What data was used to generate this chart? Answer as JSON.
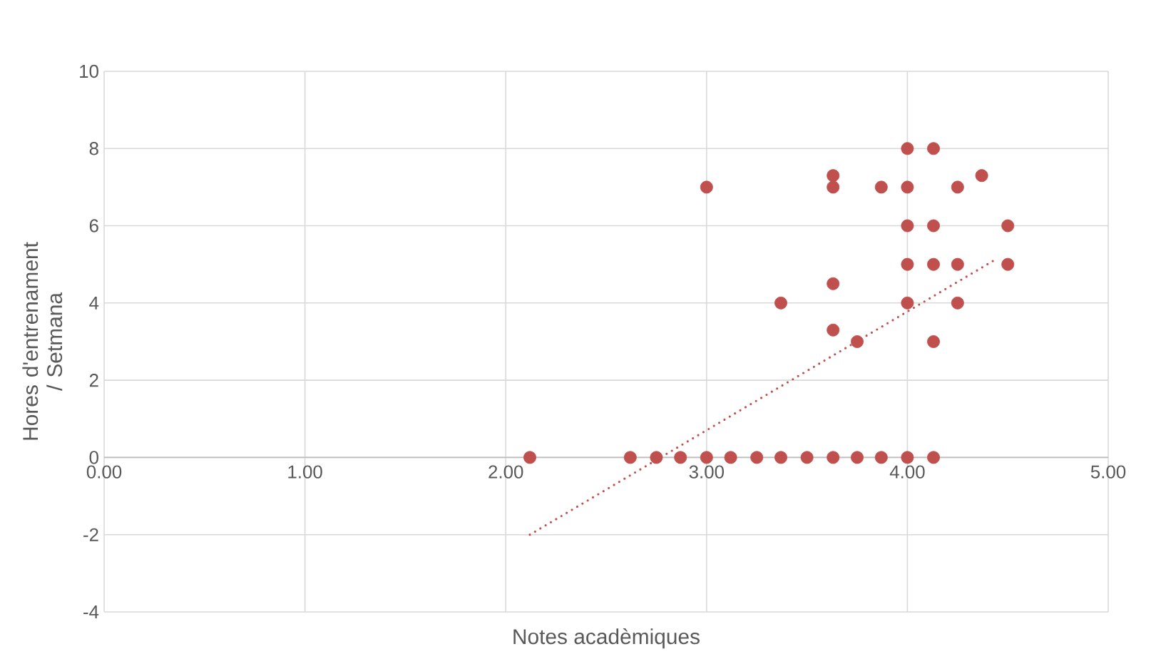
{
  "chart_data": {
    "type": "scatter",
    "xlabel": "Notes acadèmiques",
    "ylabel": "Hores d'entrenament / Setmana",
    "xlim": [
      0,
      5
    ],
    "ylim": [
      -4,
      10
    ],
    "xticks": [
      {
        "value": 0,
        "label": "0.00"
      },
      {
        "value": 1,
        "label": "1.00"
      },
      {
        "value": 2,
        "label": "2.00"
      },
      {
        "value": 3,
        "label": "3.00"
      },
      {
        "value": 4,
        "label": "4.00"
      },
      {
        "value": 5,
        "label": "5.00"
      }
    ],
    "yticks": [
      -4,
      -2,
      0,
      2,
      4,
      6,
      8,
      10
    ],
    "grid": true,
    "marker": "circle",
    "series": [
      {
        "color": "#c0504d",
        "x": [
          2.12,
          2.62,
          2.75,
          2.87,
          3.0,
          3.12,
          3.25,
          3.37,
          3.5,
          3.63,
          3.75,
          3.87,
          4.0,
          4.13,
          3.0,
          3.37,
          3.63,
          3.63,
          3.63,
          3.63,
          3.75,
          3.87,
          4.0,
          4.0,
          4.0,
          4.0,
          4.0,
          4.13,
          4.13,
          4.13,
          4.13,
          4.25,
          4.25,
          4.25,
          4.37,
          4.5,
          4.5
        ],
        "values": [
          0,
          0,
          0,
          0,
          0,
          0,
          0,
          0,
          0,
          0,
          0,
          0,
          0,
          0,
          7,
          4,
          7.3,
          7,
          4.5,
          3.3,
          3,
          7,
          8,
          7,
          6,
          5,
          4,
          8,
          6,
          5,
          3,
          7,
          5,
          4,
          7.3,
          6,
          5
        ]
      },
      {
        "type": "line",
        "color": "#c0504d",
        "line_style": "dotted",
        "marker": "none",
        "x": [
          2.12,
          4.43
        ],
        "values": [
          -2,
          5.1
        ]
      }
    ]
  }
}
